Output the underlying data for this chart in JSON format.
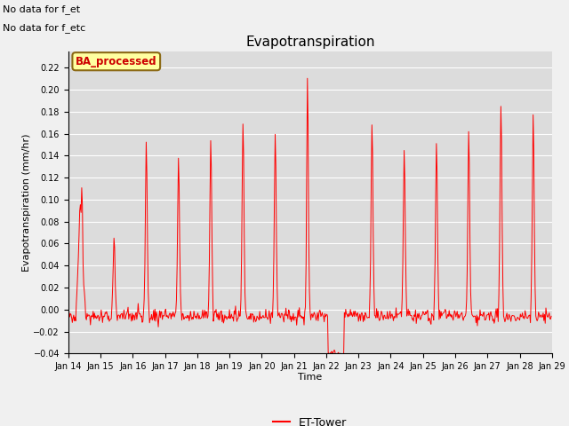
{
  "title": "Evapotranspiration",
  "xlabel": "Time",
  "ylabel": "Evapotranspiration (mm/hr)",
  "ylim": [
    -0.04,
    0.235
  ],
  "yticks": [
    -0.04,
    -0.02,
    0.0,
    0.02,
    0.04,
    0.06,
    0.08,
    0.1,
    0.12,
    0.14,
    0.16,
    0.18,
    0.2,
    0.22
  ],
  "line_color": "red",
  "line_width": 0.7,
  "bg_color": "#dcdcdc",
  "fig_bg_color": "#f0f0f0",
  "annotations": [
    "No data for f_et",
    "No data for f_etc"
  ],
  "legend_box_label": "BA_processed",
  "legend_line_label": "ET-Tower",
  "note_fontsize": 8,
  "title_fontsize": 11,
  "axis_label_fontsize": 8,
  "tick_fontsize": 7,
  "legend_box_color": "#ffffa0",
  "legend_box_edge": "#8B6914",
  "legend_box_text_color": "#cc0000"
}
